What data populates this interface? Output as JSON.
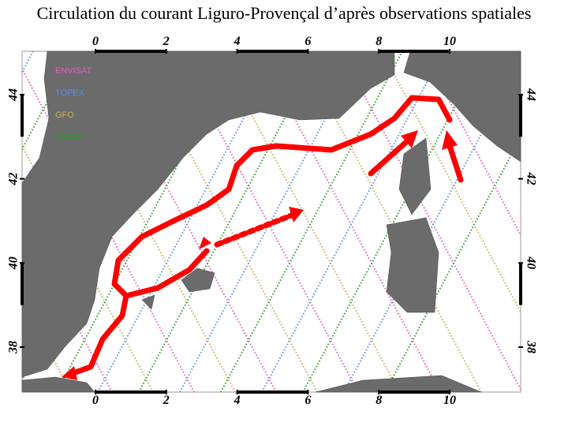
{
  "title": "Circulation du courant Liguro-Provençal d’après observations spatiales",
  "x_ticks": [
    0,
    2,
    4,
    6,
    8,
    10
  ],
  "y_ticks": [
    38,
    40,
    42,
    44
  ],
  "legend": [
    {
      "label": "ENVISAT",
      "color": "#e060c0"
    },
    {
      "label": "TOPEX",
      "color": "#5b8fe0"
    },
    {
      "label": "GFO",
      "color": "#c8b060"
    },
    {
      "label": "JASON",
      "color": "#2a9a2a"
    }
  ]
}
